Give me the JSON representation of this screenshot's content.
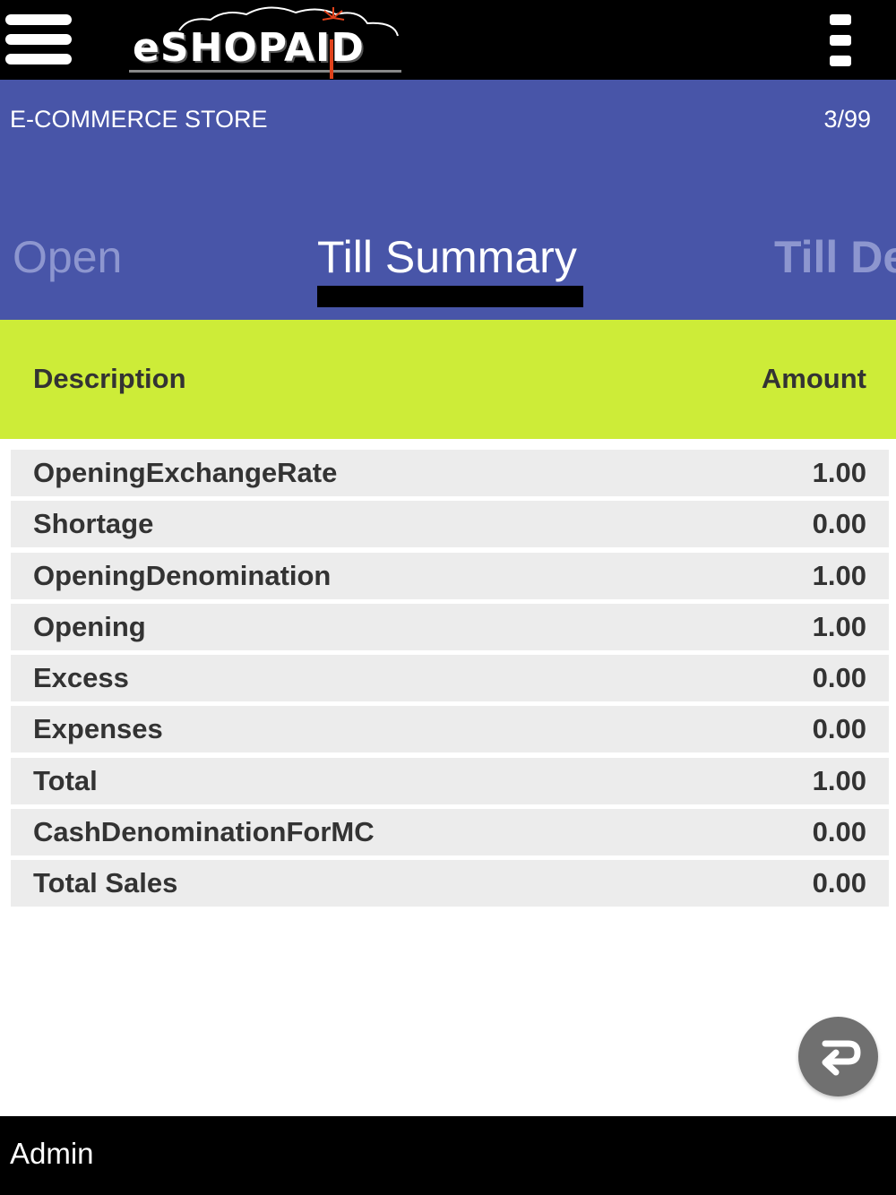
{
  "app": {
    "logo_text": "eSHOPAID",
    "brand_accent_color": "#e0421b"
  },
  "topbar": {
    "menu_icon": "hamburger-menu-icon",
    "more_icon": "kebab-more-icon"
  },
  "header": {
    "store_name": "E-COMMERCE STORE",
    "page_count": "3/99",
    "background_color": "#4855a8"
  },
  "tabs": [
    {
      "label": "Open",
      "active": false
    },
    {
      "label": "Till Summary",
      "active": true
    },
    {
      "label": "Till De",
      "active": false
    }
  ],
  "table": {
    "header_color": "#cdec38",
    "columns": [
      "Description",
      "Amount"
    ],
    "rows": [
      {
        "description": "OpeningExchangeRate",
        "amount": "1.00"
      },
      {
        "description": "Shortage",
        "amount": "0.00"
      },
      {
        "description": "OpeningDenomination",
        "amount": "1.00"
      },
      {
        "description": "Opening",
        "amount": "1.00"
      },
      {
        "description": "Excess",
        "amount": "0.00"
      },
      {
        "description": "Expenses",
        "amount": "0.00"
      },
      {
        "description": "Total",
        "amount": "1.00"
      },
      {
        "description": "CashDenominationForMC",
        "amount": "0.00"
      },
      {
        "description": "Total Sales",
        "amount": "0.00"
      }
    ]
  },
  "fab": {
    "icon": "return-arrow-icon"
  },
  "footer": {
    "user": "Admin"
  }
}
